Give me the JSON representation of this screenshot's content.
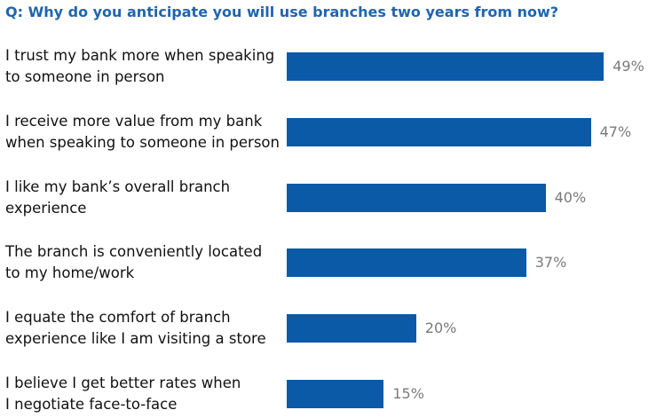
{
  "chart_data": {
    "type": "bar",
    "orientation": "horizontal",
    "title": "Q: Why do you anticipate you will use branches two years from now?",
    "categories": [
      "I trust my bank more when speaking\nto someone in person",
      "I receive more value from my bank\nwhen speaking to someone in person",
      "I like my bank’s overall branch\nexperience",
      "The branch is conveniently located\nto my home/work",
      "I equate the comfort of branch\nexperience like I am visiting a store",
      "I believe I get better rates when\nI negotiate face-to-face"
    ],
    "values": [
      49,
      47,
      40,
      37,
      20,
      15
    ],
    "value_labels": [
      "49%",
      "47%",
      "40%",
      "37%",
      "20%",
      "15%"
    ],
    "color": "#0a5aa8"
  }
}
